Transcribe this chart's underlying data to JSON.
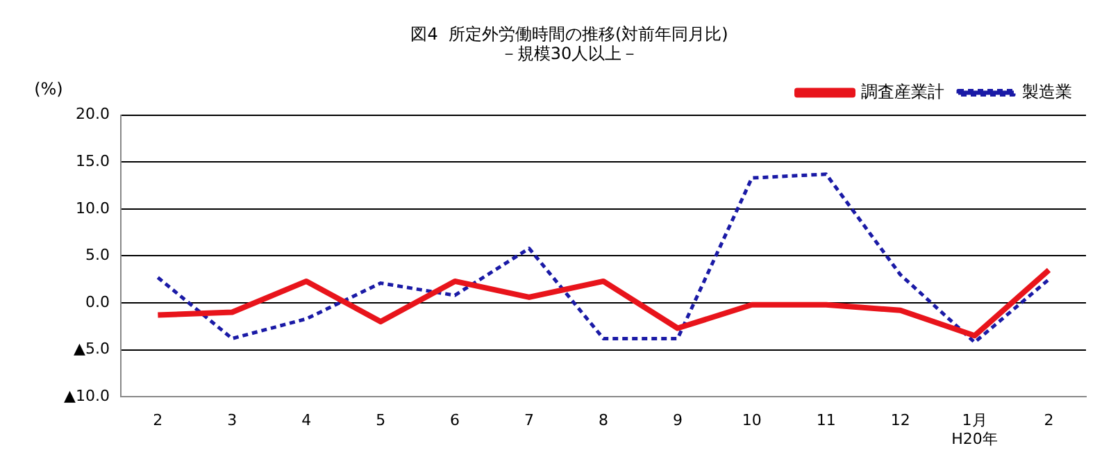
{
  "chart_data": {
    "type": "line",
    "title": "図4  所定外労働時間の推移(対前年同月比)",
    "subtitle": "－規模30人以上－",
    "ylabel": "(%)",
    "categories": [
      "2",
      "3",
      "4",
      "5",
      "6",
      "7",
      "8",
      "9",
      "10",
      "11",
      "12",
      "1月\nH20年",
      "2"
    ],
    "series": [
      {
        "name": "調査産業計",
        "color": "#e8141b",
        "line_style": "solid",
        "values": [
          -1.3,
          -1.0,
          2.3,
          -2.0,
          2.3,
          0.6,
          2.3,
          -2.7,
          -0.2,
          -0.2,
          -0.8,
          -3.5,
          3.5
        ]
      },
      {
        "name": "製造業",
        "color": "#1a1aa6",
        "line_style": "dashed",
        "values": [
          2.7,
          -3.8,
          -1.7,
          2.1,
          0.8,
          5.8,
          -3.8,
          -3.8,
          13.3,
          13.7,
          3.0,
          -4.2,
          2.5
        ]
      }
    ],
    "ylim": [
      -10,
      20
    ],
    "yticks": [
      {
        "value": -10,
        "label": "▲10.0"
      },
      {
        "value": -5,
        "label": "▲5.0"
      },
      {
        "value": 0,
        "label": "0.0"
      },
      {
        "value": 5,
        "label": "5.0"
      },
      {
        "value": 10,
        "label": "10.0"
      },
      {
        "value": 15,
        "label": "15.0"
      },
      {
        "value": 20,
        "label": "20.0"
      }
    ],
    "grid": "y",
    "legend": "top right",
    "marker": "none"
  }
}
